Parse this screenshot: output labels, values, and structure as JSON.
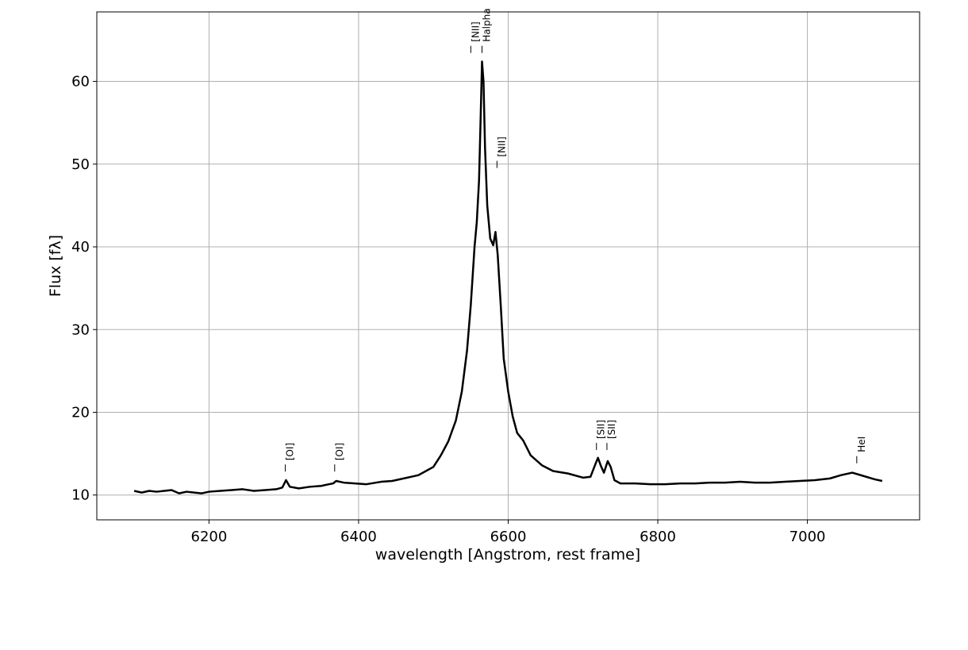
{
  "chart_data": {
    "type": "line",
    "xlabel": "wavelength [Angstrom, rest frame]",
    "ylabel": "Flux [fλ]",
    "color": "#000000",
    "grid": true,
    "xlim": [
      6050,
      7150
    ],
    "ylim": [
      7.0,
      68.4
    ],
    "xticks": [
      6200,
      6400,
      6600,
      6800,
      7000
    ],
    "yticks": [
      10,
      20,
      30,
      40,
      50,
      60
    ],
    "x": [
      6100,
      6110,
      6120,
      6130,
      6140,
      6150,
      6160,
      6170,
      6180,
      6190,
      6200,
      6215,
      6230,
      6245,
      6260,
      6275,
      6290,
      6298,
      6303,
      6308,
      6320,
      6335,
      6350,
      6360,
      6366,
      6370,
      6380,
      6395,
      6410,
      6430,
      6445,
      6460,
      6470,
      6480,
      6490,
      6500,
      6510,
      6520,
      6530,
      6538,
      6545,
      6550,
      6555,
      6558,
      6561,
      6563,
      6565,
      6567,
      6569,
      6572,
      6576,
      6580,
      6583,
      6586,
      6590,
      6594,
      6600,
      6606,
      6612,
      6620,
      6630,
      6645,
      6660,
      6680,
      6700,
      6710,
      6716,
      6720,
      6724,
      6728,
      6733,
      6737,
      6742,
      6750,
      6770,
      6790,
      6810,
      6830,
      6850,
      6870,
      6890,
      6910,
      6930,
      6950,
      6970,
      6990,
      7010,
      7030,
      7045,
      7060,
      7075,
      7090,
      7100
    ],
    "values": [
      10.5,
      10.3,
      10.5,
      10.4,
      10.5,
      10.6,
      10.2,
      10.4,
      10.3,
      10.2,
      10.4,
      10.5,
      10.6,
      10.7,
      10.5,
      10.6,
      10.7,
      10.9,
      11.8,
      11.0,
      10.8,
      11.0,
      11.1,
      11.3,
      11.4,
      11.7,
      11.5,
      11.4,
      11.3,
      11.6,
      11.7,
      12.0,
      12.2,
      12.4,
      12.9,
      13.4,
      14.8,
      16.5,
      19.0,
      22.5,
      27.5,
      33.0,
      40.0,
      43.0,
      48.0,
      55.0,
      62.4,
      60.0,
      52.0,
      45.0,
      41.0,
      40.2,
      41.8,
      39.0,
      33.0,
      26.5,
      22.5,
      19.5,
      17.5,
      16.6,
      14.8,
      13.6,
      12.9,
      12.6,
      12.1,
      12.2,
      13.6,
      14.5,
      13.5,
      12.7,
      14.1,
      13.4,
      11.8,
      11.4,
      11.4,
      11.3,
      11.3,
      11.4,
      11.4,
      11.5,
      11.5,
      11.6,
      11.5,
      11.5,
      11.6,
      11.7,
      11.8,
      12.0,
      12.4,
      12.7,
      12.3,
      11.9,
      11.7
    ],
    "annotations": [
      {
        "text": "[OI]",
        "x": 6302,
        "y": 13.7
      },
      {
        "text": "[OI]",
        "x": 6368,
        "y": 13.7
      },
      {
        "text": "[NII]",
        "x": 6550,
        "y": 64.3
      },
      {
        "text": "Halpha",
        "x": 6565,
        "y": 64.3
      },
      {
        "text": "[NII]",
        "x": 6585,
        "y": 50.4
      },
      {
        "text": "[SII]",
        "x": 6718,
        "y": 16.3
      },
      {
        "text": "[SII]",
        "x": 6732,
        "y": 16.3
      },
      {
        "text": "HeI",
        "x": 7066,
        "y": 14.7
      }
    ]
  }
}
